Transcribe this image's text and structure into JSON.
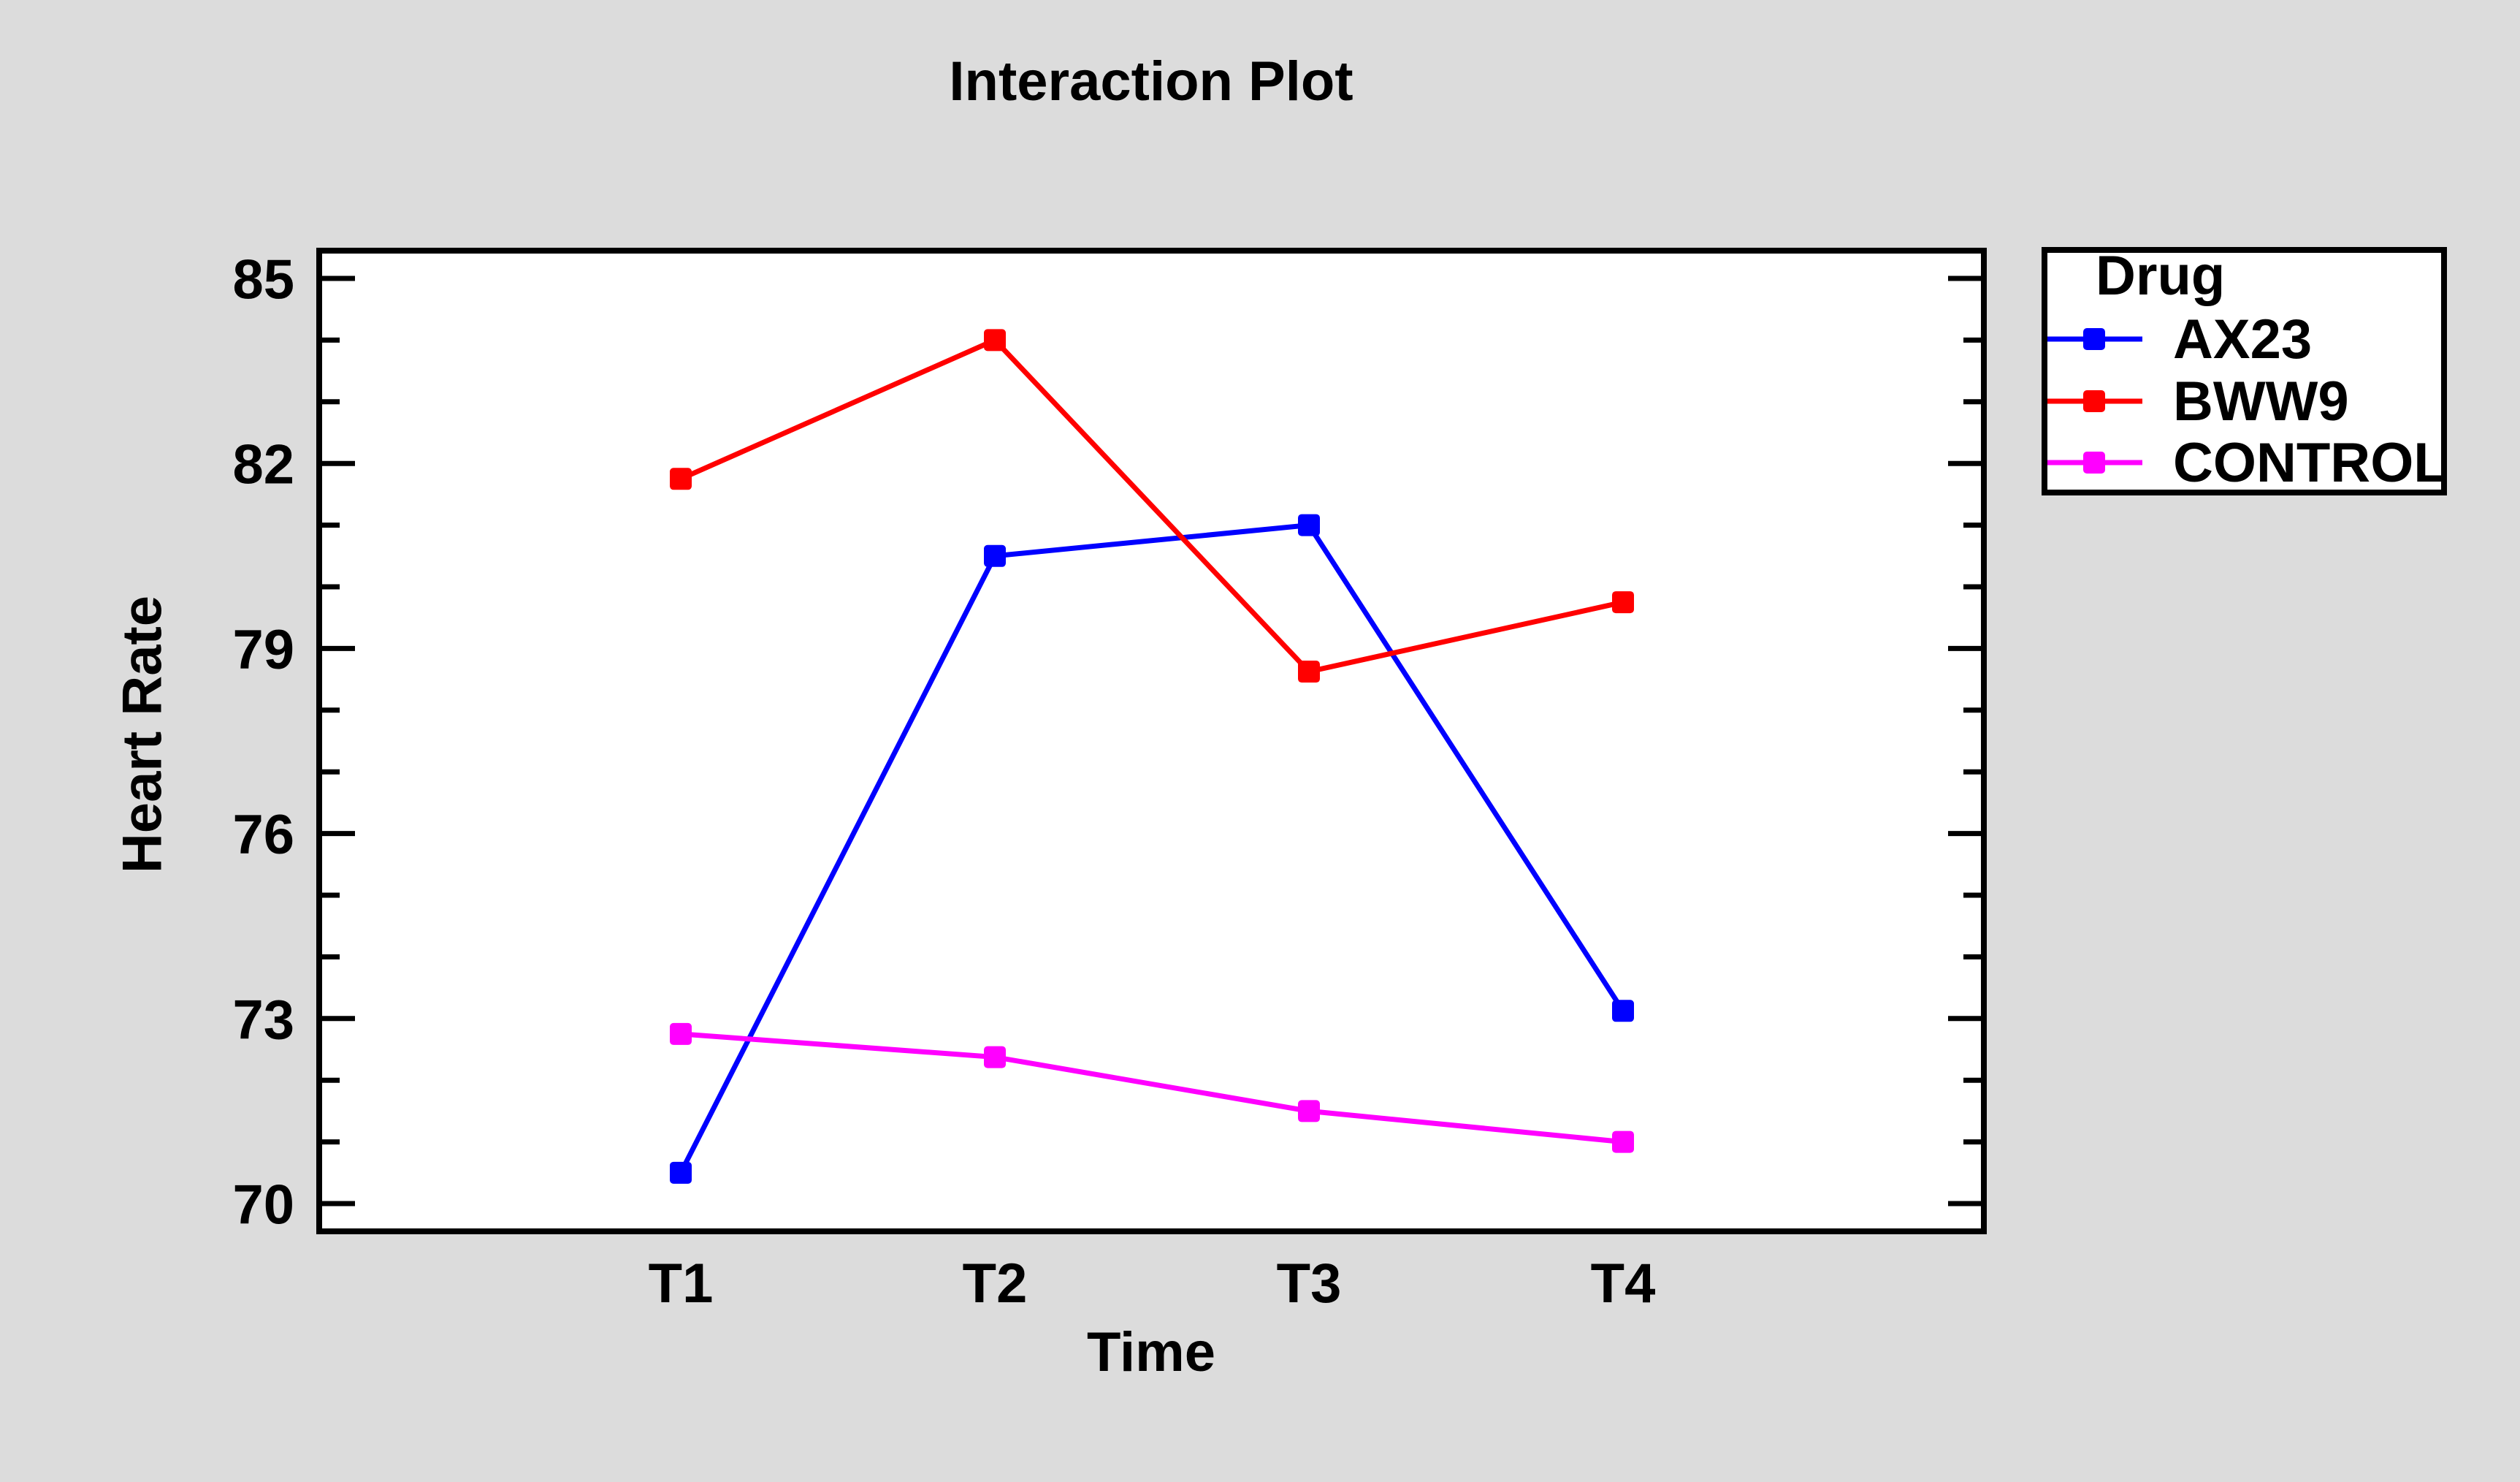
{
  "page": {
    "background_color": "#dcdcdc",
    "plot_background_color": "#ffffff",
    "frame_color": "#000000",
    "text_color": "#000000"
  },
  "chart_data": {
    "type": "line",
    "title": "Interaction Plot",
    "xlabel": "Time",
    "ylabel": "Heart Rate",
    "categories": [
      "T1",
      "T2",
      "T3",
      "T4"
    ],
    "series": [
      {
        "name": "AX23",
        "color": "#0000ff",
        "values": [
          70.5,
          80.5,
          81.0,
          73.125
        ]
      },
      {
        "name": "BWW9",
        "color": "#ff0000",
        "values": [
          81.75,
          84.0,
          78.625,
          79.75
        ]
      },
      {
        "name": "CONTROL",
        "color": "#ff00ff",
        "values": [
          72.75,
          72.375,
          71.5,
          71.0
        ]
      }
    ],
    "ylim": [
      69.55,
      85.45
    ],
    "y_major_ticks": [
      70,
      73,
      76,
      79,
      82,
      85
    ],
    "y_tick_labels": [
      "70",
      "73",
      "76",
      "79",
      "82",
      "85"
    ],
    "y_minor_tick_step": 1,
    "grid": false,
    "marker_shape": "square",
    "legend": {
      "title": "Drug",
      "position": "right",
      "entries": [
        "AX23",
        "BWW9",
        "CONTROL"
      ]
    }
  }
}
